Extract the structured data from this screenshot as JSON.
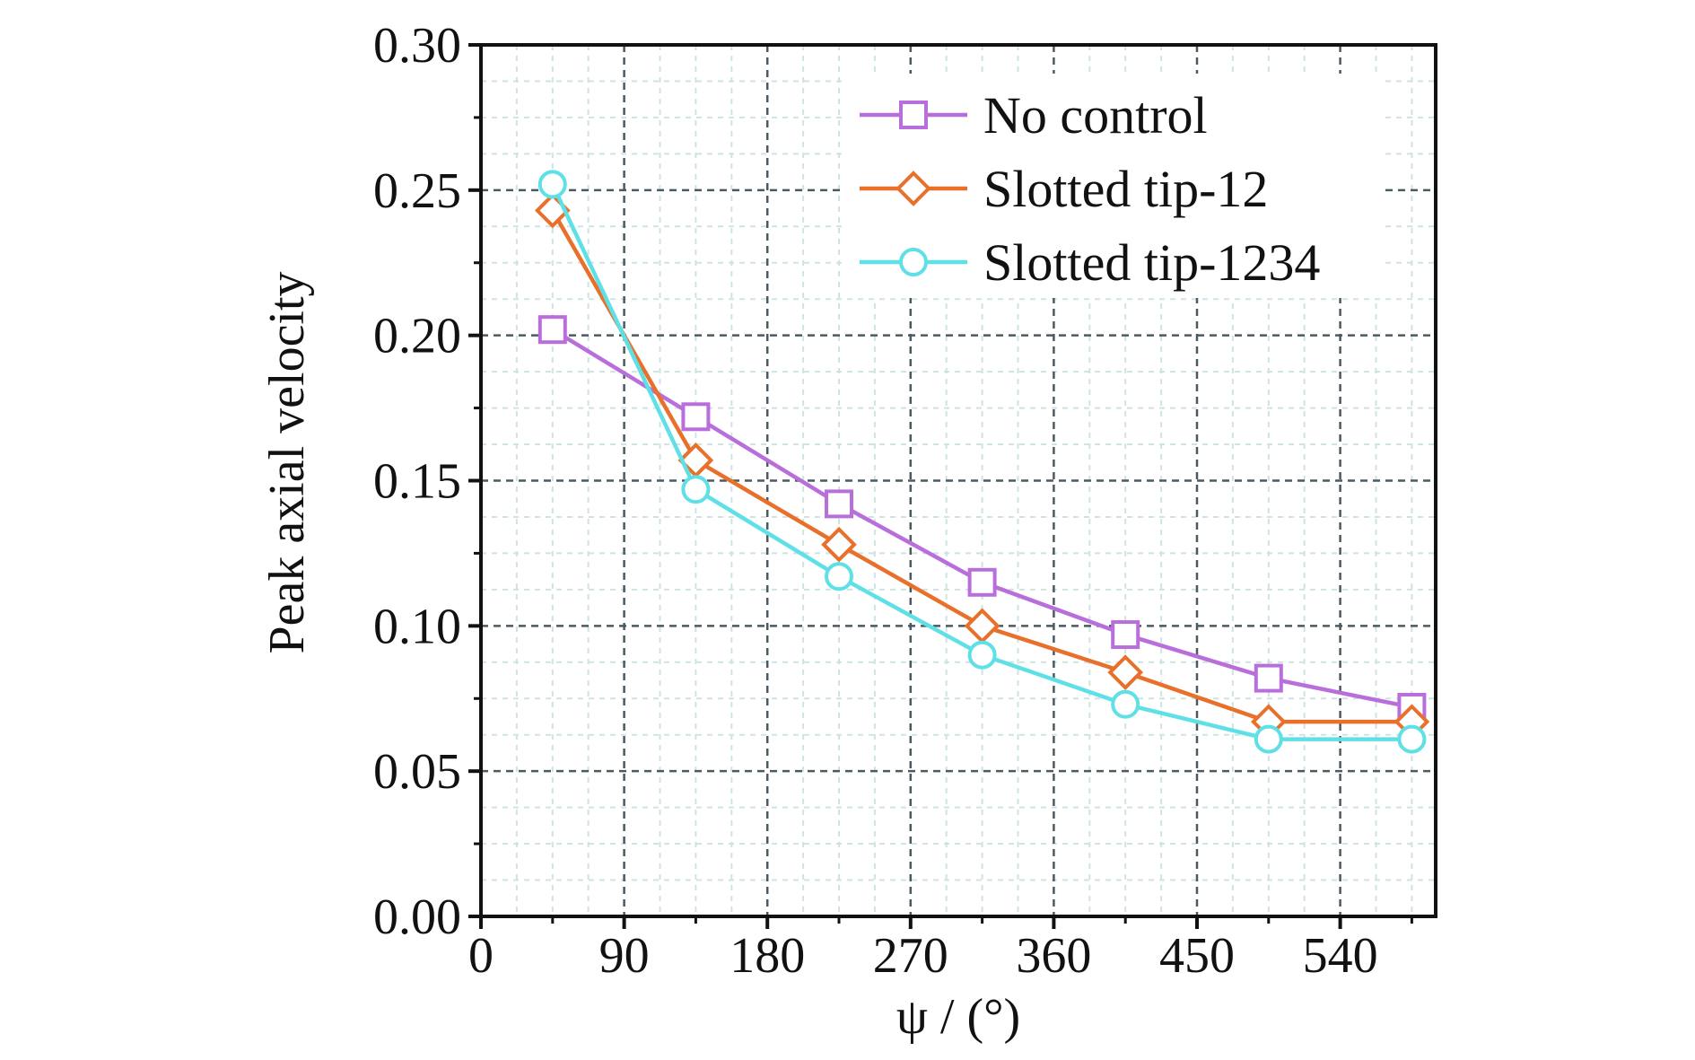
{
  "chart_data": {
    "type": "line",
    "xlabel": "ψ / (°)",
    "ylabel": "Peak axial velocity",
    "xlim": [
      0,
      600
    ],
    "ylim": [
      0,
      0.3
    ],
    "xticks": [
      0,
      90,
      180,
      270,
      360,
      450,
      540
    ],
    "xtick_labels": [
      "0",
      "90",
      "180",
      "270",
      "360",
      "450",
      "540"
    ],
    "yticks": [
      0,
      0.05,
      0.1,
      0.15,
      0.2,
      0.25,
      0.3
    ],
    "ytick_labels": [
      "0.00",
      "0.05",
      "0.10",
      "0.15",
      "0.20",
      "0.25",
      "0.30"
    ],
    "grid": true,
    "legend_position": "top-right",
    "x": [
      45,
      135,
      225,
      315,
      405,
      495,
      585
    ],
    "series": [
      {
        "name": "No control",
        "marker": "square",
        "color": "#b96fdb",
        "values": [
          0.202,
          0.172,
          0.142,
          0.115,
          0.097,
          0.082,
          0.072
        ]
      },
      {
        "name": "Slotted tip-12",
        "marker": "diamond",
        "color": "#e8702a",
        "values": [
          0.243,
          0.157,
          0.128,
          0.1,
          0.084,
          0.067,
          0.067
        ]
      },
      {
        "name": "Slotted tip-1234",
        "marker": "circle",
        "color": "#5fe0e6",
        "values": [
          0.252,
          0.147,
          0.117,
          0.09,
          0.073,
          0.061,
          0.061
        ]
      }
    ]
  }
}
